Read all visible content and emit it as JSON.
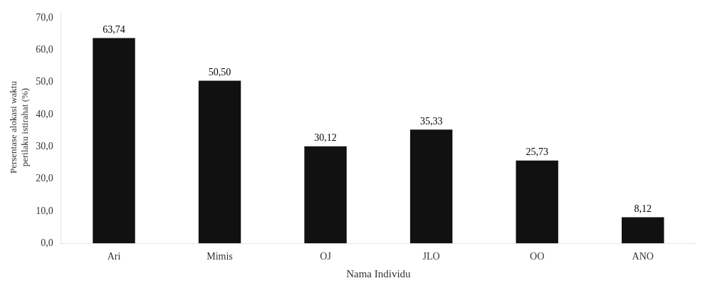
{
  "chart_data": {
    "type": "bar",
    "categories": [
      "Ari",
      "Mimis",
      "OJ",
      "JLO",
      "OO",
      "ANO"
    ],
    "values": [
      63.74,
      50.5,
      30.12,
      35.33,
      25.73,
      8.12
    ],
    "value_labels": [
      "63,74",
      "50,50",
      "30,12",
      "35,33",
      "25,73",
      "8,12"
    ],
    "data_labels": true,
    "color": "#111111",
    "xlabel": "Nama Individu",
    "ylabel": "Persentase alokasi waktu\nperilaku istirahat (%)",
    "ylim": [
      0,
      72
    ],
    "yticks": [
      {
        "value": 0,
        "label": "0,0"
      },
      {
        "value": 10,
        "label": "10,0"
      },
      {
        "value": 20,
        "label": "20,0"
      },
      {
        "value": 30,
        "label": "30,0"
      },
      {
        "value": 40,
        "label": "40,0"
      },
      {
        "value": 50,
        "label": "50,0"
      },
      {
        "value": 60,
        "label": "60,0"
      },
      {
        "value": 70,
        "label": "70,0"
      }
    ],
    "grid": false
  }
}
